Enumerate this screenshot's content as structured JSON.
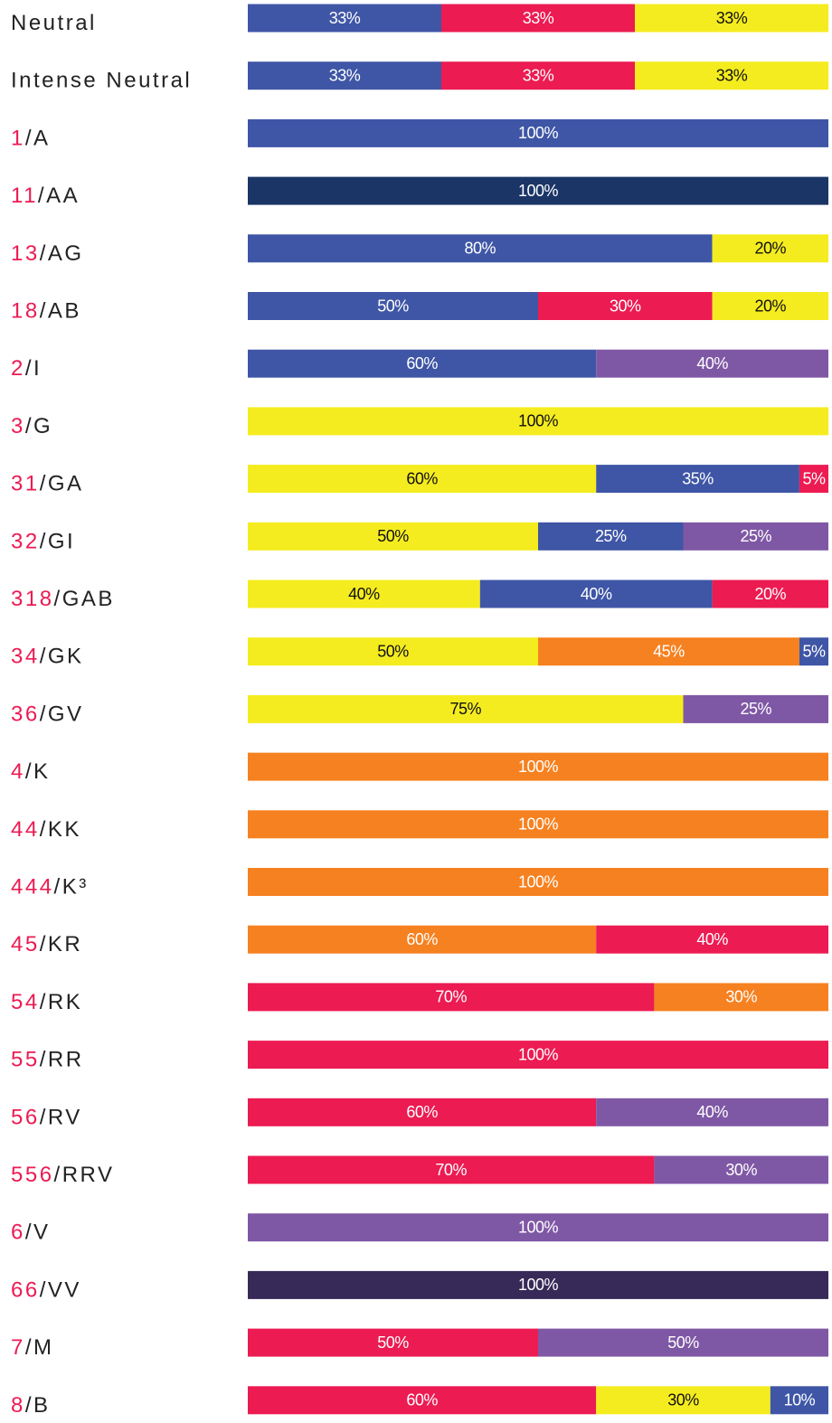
{
  "rows": [
    {
      "name": "Neutral",
      "segments": [
        {
          "color": "#3f56a6",
          "value": 33,
          "label": "33%"
        },
        {
          "color": "#ec1b52",
          "value": 33,
          "label": "33%"
        },
        {
          "color": "#f5ec1f",
          "value": 33,
          "label": "33%"
        }
      ]
    },
    {
      "name": "Intense Neutral",
      "segments": [
        {
          "color": "#3f56a6",
          "value": 33,
          "label": "33%"
        },
        {
          "color": "#ec1b52",
          "value": 33,
          "label": "33%"
        },
        {
          "color": "#f5ec1f",
          "value": 33,
          "label": "33%"
        }
      ]
    },
    {
      "code": "1",
      "name": "/A",
      "segments": [
        {
          "color": "#3f56a6",
          "value": 100,
          "label": "100%"
        }
      ]
    },
    {
      "code": "11",
      "name": "/AA",
      "segments": [
        {
          "color": "#1a3566",
          "value": 100,
          "label": "100%"
        }
      ]
    },
    {
      "code": "13",
      "name": "/AG",
      "segments": [
        {
          "color": "#3f56a6",
          "value": 80,
          "label": "80%"
        },
        {
          "color": "#f5ec1f",
          "value": 20,
          "label": "20%"
        }
      ]
    },
    {
      "code": "18",
      "name": "/AB",
      "segments": [
        {
          "color": "#3f56a6",
          "value": 50,
          "label": "50%"
        },
        {
          "color": "#ec1b52",
          "value": 30,
          "label": "30%"
        },
        {
          "color": "#f5ec1f",
          "value": 20,
          "label": "20%"
        }
      ]
    },
    {
      "code": "2",
      "name": "/I",
      "segments": [
        {
          "color": "#3f56a6",
          "value": 60,
          "label": "60%"
        },
        {
          "color": "#7f58a5",
          "value": 40,
          "label": "40%"
        }
      ]
    },
    {
      "code": "3",
      "name": "/G",
      "segments": [
        {
          "color": "#f5ec1f",
          "value": 100,
          "label": "100%"
        }
      ]
    },
    {
      "code": "31",
      "name": "/GA",
      "segments": [
        {
          "color": "#f5ec1f",
          "value": 60,
          "label": "60%"
        },
        {
          "color": "#3f56a6",
          "value": 35,
          "label": "35%"
        },
        {
          "color": "#ec1b52",
          "value": 5,
          "label": "5%"
        }
      ]
    },
    {
      "code": "32",
      "name": "/GI",
      "segments": [
        {
          "color": "#f5ec1f",
          "value": 50,
          "label": "50%"
        },
        {
          "color": "#3f56a6",
          "value": 25,
          "label": "25%"
        },
        {
          "color": "#7f58a5",
          "value": 25,
          "label": "25%"
        }
      ]
    },
    {
      "code": "318",
      "name": "/GAB",
      "segments": [
        {
          "color": "#f5ec1f",
          "value": 40,
          "label": "40%"
        },
        {
          "color": "#3f56a6",
          "value": 40,
          "label": "40%"
        },
        {
          "color": "#ec1b52",
          "value": 20,
          "label": "20%"
        }
      ]
    },
    {
      "code": "34",
      "name": "/GK",
      "segments": [
        {
          "color": "#f5ec1f",
          "value": 50,
          "label": "50%"
        },
        {
          "color": "#f68120",
          "value": 45,
          "label": "45%"
        },
        {
          "color": "#3f56a6",
          "value": 5,
          "label": "5%"
        }
      ]
    },
    {
      "code": "36",
      "name": "/GV",
      "segments": [
        {
          "color": "#f5ec1f",
          "value": 75,
          "label": "75%"
        },
        {
          "color": "#7f58a5",
          "value": 25,
          "label": "25%"
        }
      ]
    },
    {
      "code": "4",
      "name": "/K",
      "segments": [
        {
          "color": "#f68120",
          "value": 100,
          "label": "100%"
        }
      ]
    },
    {
      "code": "44",
      "name": "/KK",
      "segments": [
        {
          "color": "#f68120",
          "value": 100,
          "label": "100%"
        }
      ]
    },
    {
      "code": "444",
      "name": "/K³",
      "segments": [
        {
          "color": "#f68120",
          "value": 100,
          "label": "100%"
        }
      ]
    },
    {
      "code": "45",
      "name": "/KR",
      "segments": [
        {
          "color": "#f68120",
          "value": 60,
          "label": "60%"
        },
        {
          "color": "#ec1b52",
          "value": 40,
          "label": "40%"
        }
      ]
    },
    {
      "code": "54",
      "name": "/RK",
      "segments": [
        {
          "color": "#ec1b52",
          "value": 70,
          "label": "70%"
        },
        {
          "color": "#f68120",
          "value": 30,
          "label": "30%"
        }
      ]
    },
    {
      "code": "55",
      "name": "/RR",
      "segments": [
        {
          "color": "#ec1b52",
          "value": 100,
          "label": "100%"
        }
      ]
    },
    {
      "code": "56",
      "name": "/RV",
      "segments": [
        {
          "color": "#ec1b52",
          "value": 60,
          "label": "60%"
        },
        {
          "color": "#7f58a5",
          "value": 40,
          "label": "40%"
        }
      ]
    },
    {
      "code": "556",
      "name": "/RRV",
      "segments": [
        {
          "color": "#ec1b52",
          "value": 70,
          "label": "70%"
        },
        {
          "color": "#7f58a5",
          "value": 30,
          "label": "30%"
        }
      ]
    },
    {
      "code": "6",
      "name": "/V",
      "segments": [
        {
          "color": "#7f58a5",
          "value": 100,
          "label": "100%"
        }
      ]
    },
    {
      "code": "66",
      "name": "/VV",
      "segments": [
        {
          "color": "#372a58",
          "value": 100,
          "label": "100%"
        }
      ]
    },
    {
      "code": "7",
      "name": "/M",
      "segments": [
        {
          "color": "#ec1b52",
          "value": 50,
          "label": "50%"
        },
        {
          "color": "#7f58a5",
          "value": 50,
          "label": "50%"
        }
      ]
    },
    {
      "code": "8",
      "name": "/B",
      "segments": [
        {
          "color": "#ec1b52",
          "value": 60,
          "label": "60%"
        },
        {
          "color": "#f5ec1f",
          "value": 30,
          "label": "30%"
        },
        {
          "color": "#3f56a6",
          "value": 10,
          "label": "10%"
        }
      ]
    }
  ]
}
